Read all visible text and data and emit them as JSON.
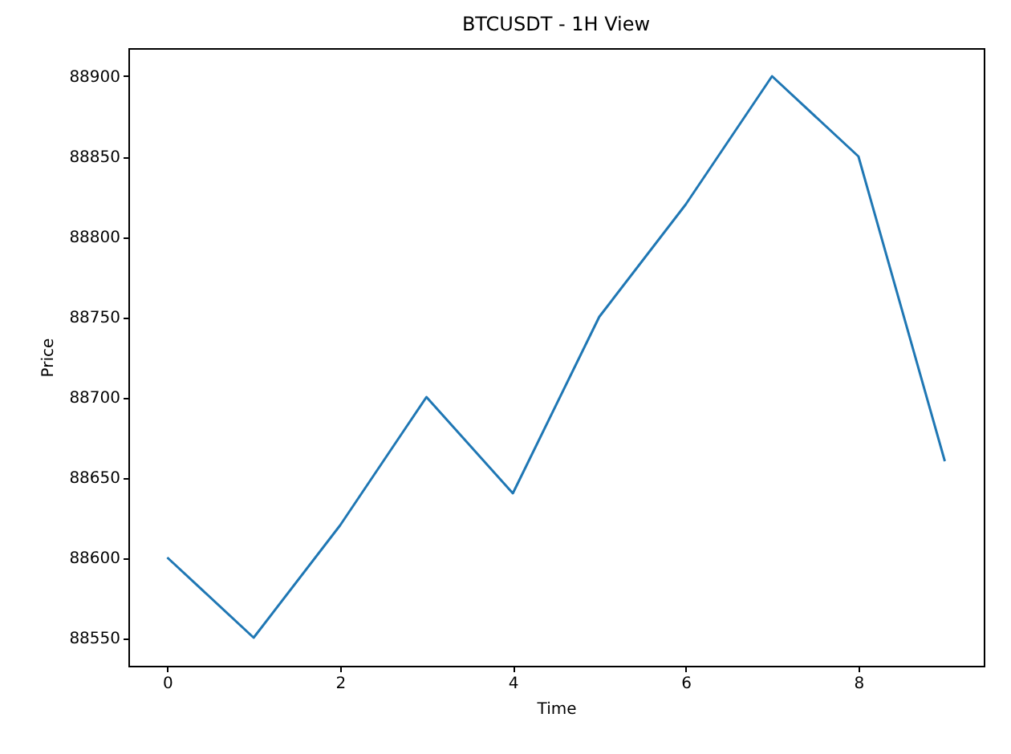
{
  "chart_data": {
    "type": "line",
    "title": "BTCUSDT - 1H View",
    "xlabel": "Time",
    "ylabel": "Price",
    "x": [
      0,
      1,
      2,
      3,
      4,
      5,
      6,
      7,
      8,
      9
    ],
    "series": [
      {
        "color": "#1f77b4",
        "values": [
          88600,
          88550,
          88620,
          88700,
          88640,
          88750,
          88820,
          88900,
          88850,
          88660
        ]
      }
    ],
    "xlim": [
      -0.45,
      9.45
    ],
    "ylim": [
      88532.5,
      88917.5
    ],
    "xticks": [
      0,
      2,
      4,
      6,
      8
    ],
    "yticks": [
      88550,
      88600,
      88650,
      88700,
      88750,
      88800,
      88850,
      88900
    ],
    "grid": false
  }
}
